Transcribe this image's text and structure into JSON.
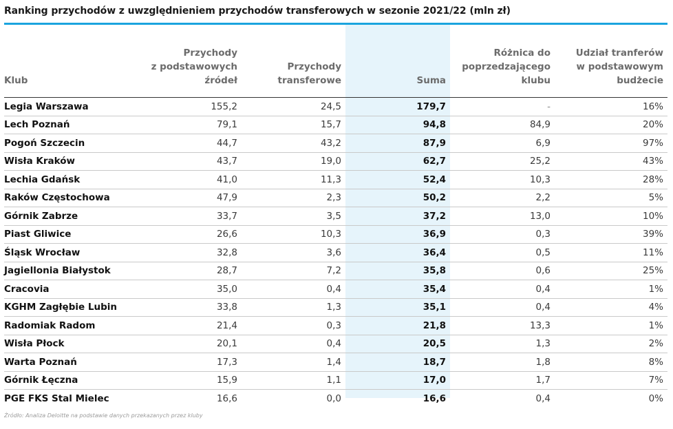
{
  "title": "Ranking przychodów z uwzględnieniem przychodów transferowych w sezonie 2021/22 (mln zł)",
  "headers": {
    "club": "Klub",
    "base_revenue": "Przychody\nz podstawowych\nźródeł",
    "transfer_revenue": "Przychody\ntransferowe",
    "sum": "Suma",
    "difference": "Różnica do\npoprzedzającego\nklubu",
    "transfer_share": "Udział tranferów\nw podstawowym\nbudżecie"
  },
  "rows": [
    {
      "club": "Legia Warszawa",
      "base": "155,2",
      "transfer": "24,5",
      "sum": "179,7",
      "diff": "-",
      "share": "16%"
    },
    {
      "club": "Lech Poznań",
      "base": "79,1",
      "transfer": "15,7",
      "sum": "94,8",
      "diff": "84,9",
      "share": "20%"
    },
    {
      "club": "Pogoń Szczecin",
      "base": "44,7",
      "transfer": "43,2",
      "sum": "87,9",
      "diff": "6,9",
      "share": "97%"
    },
    {
      "club": "Wisła Kraków",
      "base": "43,7",
      "transfer": "19,0",
      "sum": "62,7",
      "diff": "25,2",
      "share": "43%"
    },
    {
      "club": "Lechia Gdańsk",
      "base": "41,0",
      "transfer": "11,3",
      "sum": "52,4",
      "diff": "10,3",
      "share": "28%"
    },
    {
      "club": "Raków Częstochowa",
      "base": "47,9",
      "transfer": "2,3",
      "sum": "50,2",
      "diff": "2,2",
      "share": "5%"
    },
    {
      "club": "Górnik Zabrze",
      "base": "33,7",
      "transfer": "3,5",
      "sum": "37,2",
      "diff": "13,0",
      "share": "10%"
    },
    {
      "club": "Piast Gliwice",
      "base": "26,6",
      "transfer": "10,3",
      "sum": "36,9",
      "diff": "0,3",
      "share": "39%"
    },
    {
      "club": "Śląsk Wrocław",
      "base": "32,8",
      "transfer": "3,6",
      "sum": "36,4",
      "diff": "0,5",
      "share": "11%"
    },
    {
      "club": "Jagiellonia Białystok",
      "base": "28,7",
      "transfer": "7,2",
      "sum": "35,8",
      "diff": "0,6",
      "share": "25%"
    },
    {
      "club": "Cracovia",
      "base": "35,0",
      "transfer": "0,4",
      "sum": "35,4",
      "diff": "0,4",
      "share": "1%"
    },
    {
      "club": "KGHM Zagłębie Lubin",
      "base": "33,8",
      "transfer": "1,3",
      "sum": "35,1",
      "diff": "0,4",
      "share": "4%"
    },
    {
      "club": "Radomiak Radom",
      "base": "21,4",
      "transfer": "0,3",
      "sum": "21,8",
      "diff": "13,3",
      "share": "1%"
    },
    {
      "club": "Wisła Płock",
      "base": "20,1",
      "transfer": "0,4",
      "sum": "20,5",
      "diff": "1,3",
      "share": "2%"
    },
    {
      "club": "Warta Poznań",
      "base": "17,3",
      "transfer": "1,4",
      "sum": "18,7",
      "diff": "1,8",
      "share": "8%"
    },
    {
      "club": "Górnik Łęczna",
      "base": "15,9",
      "transfer": "1,1",
      "sum": "17,0",
      "diff": "1,7",
      "share": "7%"
    },
    {
      "club": "PGE FKS Stal Mielec",
      "base": "16,6",
      "transfer": "0,0",
      "sum": "16,6",
      "diff": "0,4",
      "share": "0%"
    }
  ],
  "source": "Źródło: Analiza Deloitte na podstawie danych przekazanych przez kluby",
  "colors": {
    "accent": "#1aa4de",
    "sum_column_bg": "#e6f4fb",
    "header_text": "#6b6b6b"
  }
}
